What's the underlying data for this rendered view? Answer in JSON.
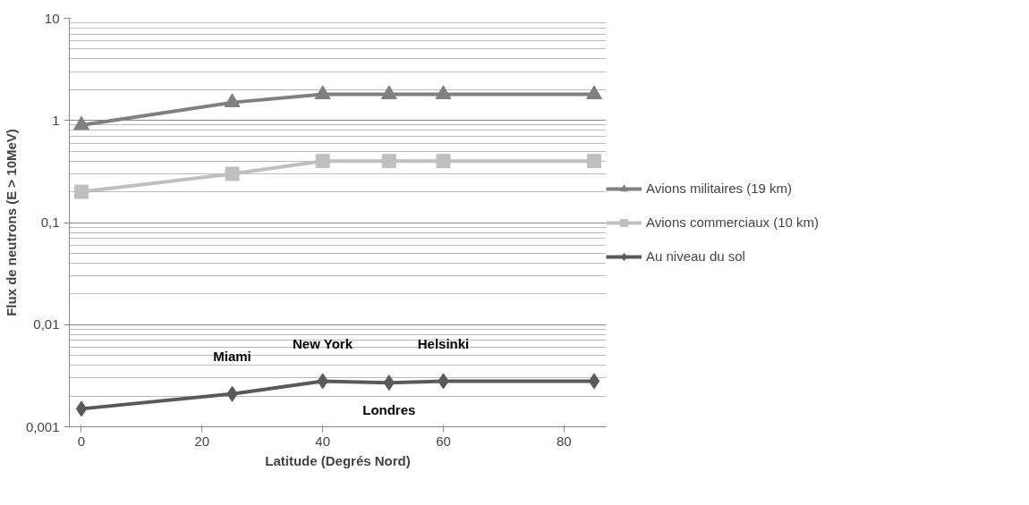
{
  "chart_data": {
    "type": "line",
    "xlabel": "Latitude (Degrés Nord)",
    "ylabel": "Flux de neutrons (E > 10MeV)",
    "x": [
      0,
      25,
      40,
      51,
      60,
      85
    ],
    "series": [
      {
        "name": "Avions militaires (19 km)",
        "color": "#808080",
        "marker": "triangle",
        "values": [
          0.9,
          1.5,
          1.8,
          1.8,
          1.8,
          1.8
        ]
      },
      {
        "name": "Avions commerciaux (10 km)",
        "color": "#bfbfbf",
        "marker": "square",
        "values": [
          0.2,
          0.3,
          0.4,
          0.4,
          0.4,
          0.4
        ]
      },
      {
        "name": "Au niveau du sol",
        "color": "#595959",
        "marker": "diamond",
        "values": [
          0.0015,
          0.0021,
          0.0028,
          0.0027,
          0.0028,
          0.0028
        ]
      }
    ],
    "log": "y",
    "xlim": [
      -2,
      87
    ],
    "ylim": [
      0.001,
      10
    ],
    "xticks": [
      0,
      20,
      40,
      60,
      80
    ],
    "yticks": [
      {
        "value": 0.001,
        "label": "0,001"
      },
      {
        "value": 0.01,
        "label": "0,01"
      },
      {
        "value": 0.1,
        "label": "0,1"
      },
      {
        "value": 1,
        "label": "1"
      },
      {
        "value": 10,
        "label": "10"
      }
    ],
    "grid": "y",
    "legend": "right",
    "annotations": [
      {
        "text": "Miami",
        "x": 25,
        "y": 0.0021
      },
      {
        "text": "New York",
        "x": 40,
        "y": 0.0028
      },
      {
        "text": "Helsinki",
        "x": 60,
        "y": 0.0028
      },
      {
        "text": "Londres",
        "x": 51,
        "y": 0.0027
      }
    ]
  }
}
